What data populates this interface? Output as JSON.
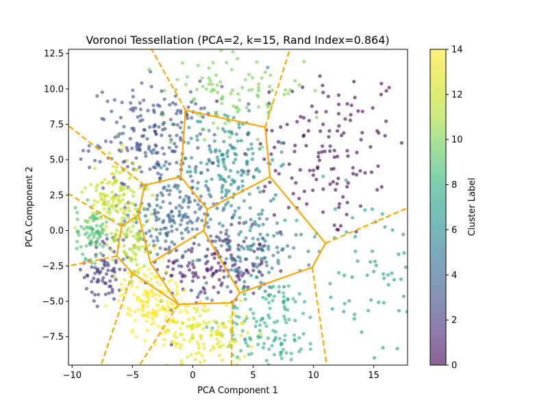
{
  "chart_data": {
    "type": "scatter",
    "title": "Voronoi Tessellation (PCA=2, k=15, Rand Index=0.864)",
    "xlabel": "PCA Component 1",
    "ylabel": "PCA Component 2",
    "xlim": [
      -10.3,
      17.8
    ],
    "ylim": [
      -9.5,
      12.8
    ],
    "xticks": [
      -10,
      -5,
      0,
      5,
      10,
      15
    ],
    "yticks": [
      -7.5,
      -5.0,
      -2.5,
      0.0,
      2.5,
      5.0,
      7.5,
      10.0,
      12.5
    ],
    "xtick_labels": [
      "−10",
      "−5",
      "0",
      "5",
      "10",
      "15"
    ],
    "ytick_labels": [
      "−7.5",
      "−5.0",
      "−2.5",
      "0.0",
      "2.5",
      "5.0",
      "7.5",
      "10.0",
      "12.5"
    ],
    "grid": false,
    "colorbar": {
      "label": "Cluster Label",
      "range": [
        0,
        14
      ],
      "ticks": [
        0,
        2,
        4,
        6,
        8,
        10,
        12,
        14
      ],
      "tick_labels": [
        "0",
        "2",
        "4",
        "6",
        "8",
        "10",
        "12",
        "14"
      ],
      "colormap": "viridis"
    },
    "edge_color": "#FFA500",
    "cluster_centers": [
      {
        "label": 0,
        "center": [
          11.0,
          5.5
        ],
        "spread": [
          3.5,
          3.2
        ],
        "n": 140
      },
      {
        "label": 1,
        "center": [
          1.8,
          -2.6
        ],
        "spread": [
          2.3,
          1.3
        ],
        "n": 140
      },
      {
        "label": 2,
        "center": [
          -7.3,
          -2.8
        ],
        "spread": [
          0.8,
          1.1
        ],
        "n": 70
      },
      {
        "label": 3,
        "center": [
          -3.2,
          6.4
        ],
        "spread": [
          2.6,
          1.9
        ],
        "n": 200
      },
      {
        "label": 4,
        "center": [
          -1.6,
          0.8
        ],
        "spread": [
          2.0,
          1.5
        ],
        "n": 170
      },
      {
        "label": 5,
        "center": [
          4.9,
          -1.4
        ],
        "spread": [
          2.1,
          1.6
        ],
        "n": 120
      },
      {
        "label": 6,
        "center": [
          2.9,
          5.0
        ],
        "spread": [
          2.0,
          1.9
        ],
        "n": 150
      },
      {
        "label": 7,
        "center": [
          14.0,
          -3.0
        ],
        "spread": [
          2.7,
          3.3
        ],
        "n": 60
      },
      {
        "label": 8,
        "center": [
          6.5,
          -6.6
        ],
        "spread": [
          2.0,
          1.6
        ],
        "n": 130
      },
      {
        "label": 9,
        "center": [
          -8.3,
          0.0
        ],
        "spread": [
          0.7,
          1.0
        ],
        "n": 80
      },
      {
        "label": 10,
        "center": [
          3.4,
          9.9
        ],
        "spread": [
          3.0,
          1.5
        ],
        "n": 100
      },
      {
        "label": 11,
        "center": [
          -5.1,
          -0.8
        ],
        "spread": [
          1.0,
          1.4
        ],
        "n": 90
      },
      {
        "label": 12,
        "center": [
          -6.5,
          2.6
        ],
        "spread": [
          1.1,
          1.3
        ],
        "n": 110
      },
      {
        "label": 13,
        "center": [
          1.0,
          -7.3
        ],
        "spread": [
          1.8,
          1.3
        ],
        "n": 140
      },
      {
        "label": 14,
        "center": [
          -3.3,
          -5.0
        ],
        "spread": [
          1.3,
          1.3
        ],
        "n": 150
      }
    ],
    "voronoi_vertices": [
      [
        -0.6,
        8.5
      ],
      [
        6.0,
        7.3
      ],
      [
        -1.0,
        3.8
      ],
      [
        -4.0,
        3.2
      ],
      [
        6.4,
        3.8
      ],
      [
        1.2,
        1.5
      ],
      [
        0.9,
        0.0
      ],
      [
        -4.5,
        1.1
      ],
      [
        -5.9,
        0.3
      ],
      [
        -6.3,
        -1.8
      ],
      [
        -5.0,
        -3.0
      ],
      [
        -3.5,
        -2.3
      ],
      [
        -1.2,
        -5.2
      ],
      [
        3.3,
        -5.1
      ],
      [
        3.9,
        -4.4
      ],
      [
        9.9,
        -2.6
      ],
      [
        11.0,
        -0.9
      ]
    ],
    "voronoi_edges": [
      [
        0,
        1
      ],
      [
        0,
        2
      ],
      [
        2,
        3
      ],
      [
        1,
        4
      ],
      [
        2,
        5
      ],
      [
        4,
        5
      ],
      [
        5,
        6
      ],
      [
        3,
        7
      ],
      [
        7,
        8
      ],
      [
        8,
        9
      ],
      [
        9,
        10
      ],
      [
        7,
        11
      ],
      [
        6,
        11
      ],
      [
        10,
        12
      ],
      [
        11,
        12
      ],
      [
        12,
        13
      ],
      [
        13,
        14
      ],
      [
        6,
        14
      ],
      [
        14,
        15
      ],
      [
        15,
        16
      ],
      [
        4,
        16
      ]
    ],
    "voronoi_rays": [
      {
        "from": 0,
        "to": [
          -4.2,
          14.0
        ]
      },
      {
        "from": 1,
        "to": [
          8.5,
          14.0
        ]
      },
      {
        "from": 3,
        "to": [
          -10.3,
          7.4
        ]
      },
      {
        "from": 8,
        "to": [
          -10.3,
          2.6
        ]
      },
      {
        "from": 9,
        "to": [
          -10.3,
          -2.5
        ]
      },
      {
        "from": 10,
        "to": [
          -7.6,
          -9.5
        ]
      },
      {
        "from": 12,
        "to": [
          -4.4,
          -9.5
        ]
      },
      {
        "from": 13,
        "to": [
          3.2,
          -9.5
        ]
      },
      {
        "from": 15,
        "to": [
          11.1,
          -9.5
        ]
      },
      {
        "from": 16,
        "to": [
          17.8,
          1.6
        ]
      }
    ]
  }
}
